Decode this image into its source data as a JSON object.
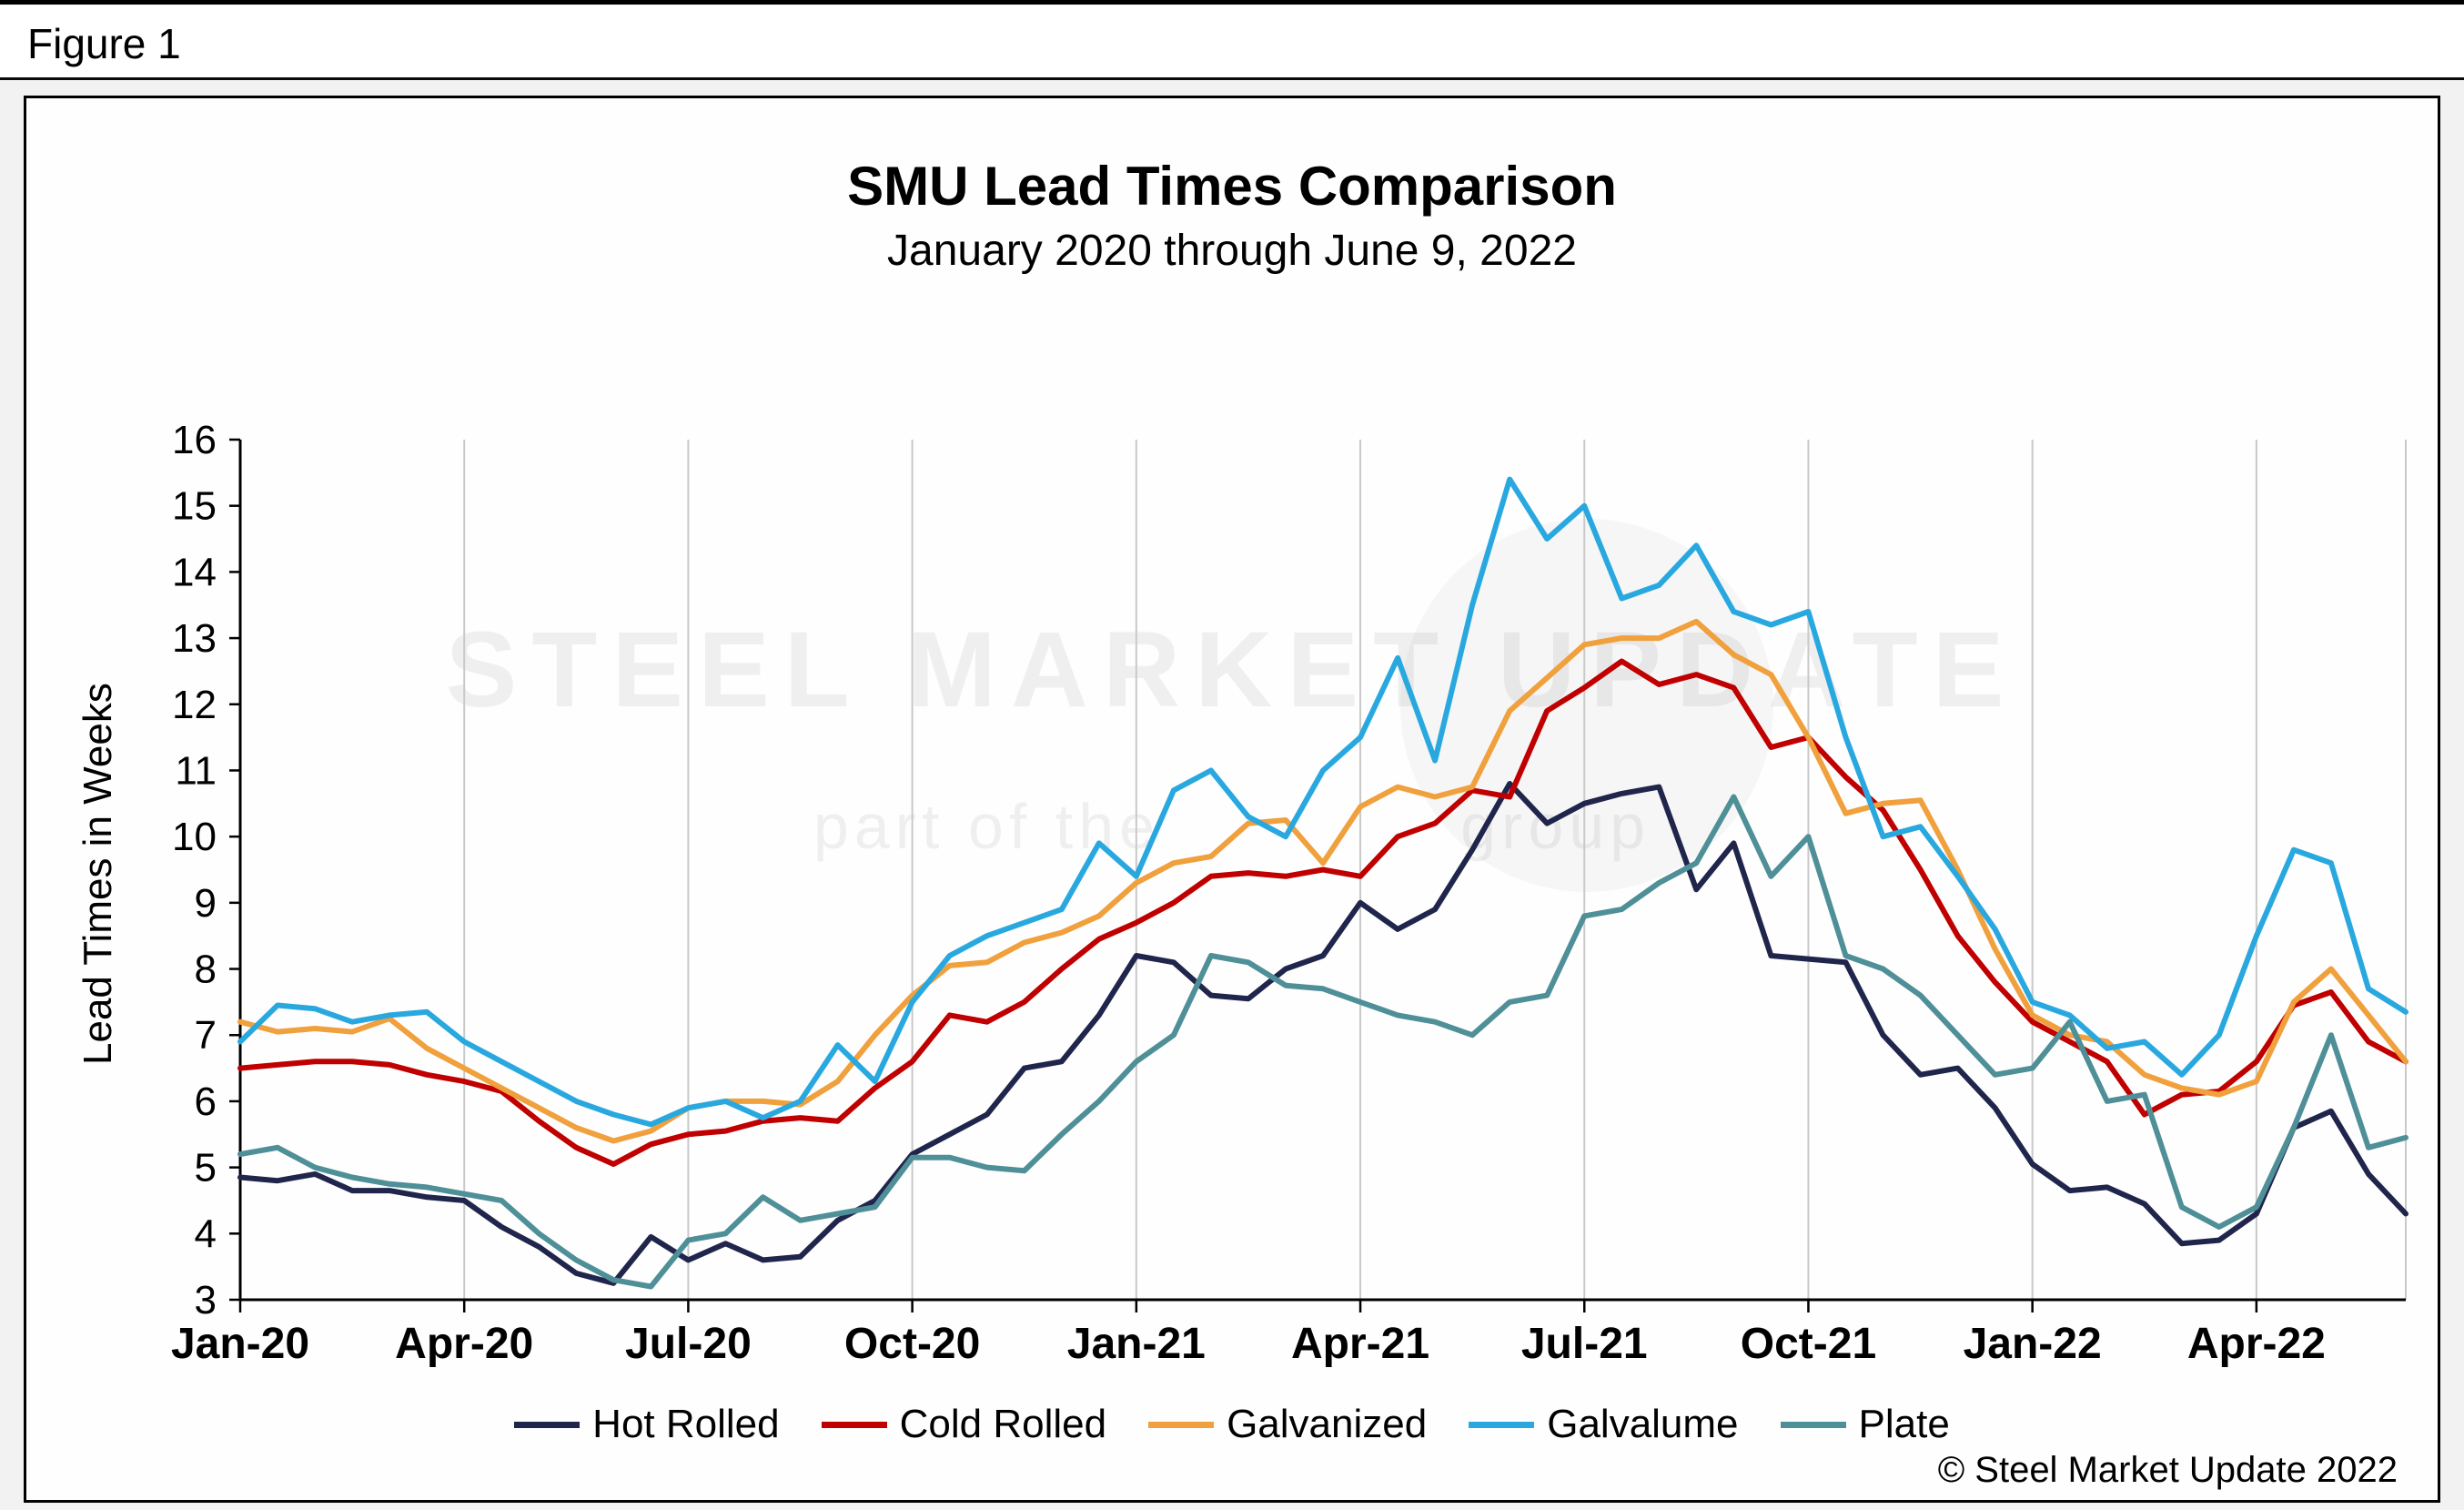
{
  "figure_label": "Figure 1",
  "chart_data": {
    "type": "line",
    "title": "SMU Lead Times Comparison",
    "subtitle": "January 2020 through June 9, 2022",
    "ylabel": "Lead Times in Weeks",
    "xlabel": "",
    "ylim": [
      3,
      16
    ],
    "ytick_step": 1,
    "grid": "vertical-only",
    "legend_position": "bottom",
    "n_points": 59,
    "x_tick_labels": [
      "Jan-20",
      "Apr-20",
      "Jul-20",
      "Oct-20",
      "Jan-21",
      "Apr-21",
      "Jul-21",
      "Oct-21",
      "Jan-22",
      "Apr-22"
    ],
    "x_tick_indices": [
      0,
      6,
      12,
      18,
      24,
      30,
      36,
      42,
      48,
      54
    ],
    "x_frequency": "semi-monthly",
    "series": [
      {
        "name": "Hot Rolled",
        "color": "#20254c",
        "values": [
          4.85,
          4.8,
          4.9,
          4.65,
          4.65,
          4.55,
          4.5,
          4.1,
          3.8,
          3.4,
          3.25,
          3.95,
          3.6,
          3.85,
          3.6,
          3.65,
          4.2,
          4.5,
          5.2,
          5.5,
          5.8,
          6.5,
          6.6,
          7.3,
          8.2,
          8.1,
          7.6,
          7.55,
          8.0,
          8.2,
          9.0,
          8.6,
          8.9,
          9.8,
          10.8,
          10.2,
          10.5,
          10.65,
          10.75,
          9.2,
          9.9,
          8.2,
          8.15,
          8.1,
          7.0,
          6.4,
          6.5,
          5.9,
          5.05,
          4.65,
          4.7,
          4.45,
          3.85,
          3.9,
          4.3,
          5.6,
          5.85,
          4.9,
          4.3
        ]
      },
      {
        "name": "Cold Rolled",
        "color": "#c00000",
        "values": [
          6.5,
          6.55,
          6.6,
          6.6,
          6.55,
          6.4,
          6.3,
          6.15,
          5.7,
          5.3,
          5.05,
          5.35,
          5.5,
          5.55,
          5.7,
          5.75,
          5.7,
          6.2,
          6.6,
          7.3,
          7.2,
          7.5,
          8.0,
          8.45,
          8.7,
          9.0,
          9.4,
          9.45,
          9.4,
          9.5,
          9.4,
          10.0,
          10.2,
          10.7,
          10.6,
          11.9,
          12.25,
          12.65,
          12.3,
          12.45,
          12.25,
          11.35,
          11.5,
          10.9,
          10.4,
          9.5,
          8.5,
          7.8,
          7.2,
          6.9,
          6.6,
          5.8,
          6.1,
          6.15,
          6.6,
          7.45,
          7.65,
          6.9,
          6.6
        ]
      },
      {
        "name": "Galvanized",
        "color": "#f0a03c",
        "values": [
          7.2,
          7.05,
          7.1,
          7.05,
          7.25,
          6.8,
          6.5,
          6.2,
          5.9,
          5.6,
          5.4,
          5.55,
          5.9,
          6.0,
          6.0,
          5.95,
          6.3,
          7.0,
          7.6,
          8.05,
          8.1,
          8.4,
          8.55,
          8.8,
          9.3,
          9.6,
          9.7,
          10.2,
          10.25,
          9.6,
          10.45,
          10.75,
          10.6,
          10.75,
          11.9,
          12.4,
          12.9,
          13.0,
          13.0,
          13.25,
          12.75,
          12.45,
          11.5,
          10.35,
          10.5,
          10.55,
          9.5,
          8.3,
          7.3,
          7.0,
          6.9,
          6.4,
          6.2,
          6.1,
          6.3,
          7.5,
          8.0,
          7.3,
          6.6
        ]
      },
      {
        "name": "Galvalume",
        "color": "#29a8e0",
        "values": [
          6.9,
          7.45,
          7.4,
          7.2,
          7.3,
          7.35,
          6.9,
          6.6,
          6.3,
          6.0,
          5.8,
          5.65,
          5.9,
          6.0,
          5.75,
          6.0,
          6.85,
          6.3,
          7.5,
          8.2,
          8.5,
          8.7,
          8.9,
          9.9,
          9.4,
          10.7,
          11.0,
          10.3,
          10.0,
          11.0,
          11.5,
          12.7,
          11.15,
          13.5,
          15.4,
          14.5,
          15.0,
          13.6,
          13.8,
          14.4,
          13.4,
          13.2,
          13.4,
          11.5,
          10.0,
          10.15,
          9.4,
          8.6,
          7.5,
          7.3,
          6.8,
          6.9,
          6.4,
          7.0,
          8.5,
          9.8,
          9.6,
          7.7,
          7.35
        ]
      },
      {
        "name": "Plate",
        "color": "#4f8f98",
        "values": [
          5.2,
          5.3,
          5.0,
          4.85,
          4.75,
          4.7,
          4.6,
          4.5,
          4.0,
          3.6,
          3.3,
          3.2,
          3.9,
          4.0,
          4.55,
          4.2,
          4.3,
          4.4,
          5.15,
          5.15,
          5.0,
          4.95,
          5.5,
          6.0,
          6.6,
          7.0,
          8.2,
          8.1,
          7.75,
          7.7,
          7.5,
          7.3,
          7.2,
          7.0,
          7.5,
          7.6,
          8.8,
          8.9,
          9.3,
          9.6,
          10.6,
          9.4,
          10.0,
          8.2,
          8.0,
          7.6,
          7.0,
          6.4,
          6.5,
          7.2,
          6.0,
          6.1,
          4.4,
          4.1,
          4.4,
          5.6,
          7.0,
          5.3,
          5.45
        ]
      }
    ]
  },
  "watermark": {
    "title": "STEEL MARKET UPDATE",
    "subtitle_left": "part of the",
    "subtitle_right": "group"
  },
  "footer": {
    "copyright": "© Steel Market Update 2022"
  }
}
